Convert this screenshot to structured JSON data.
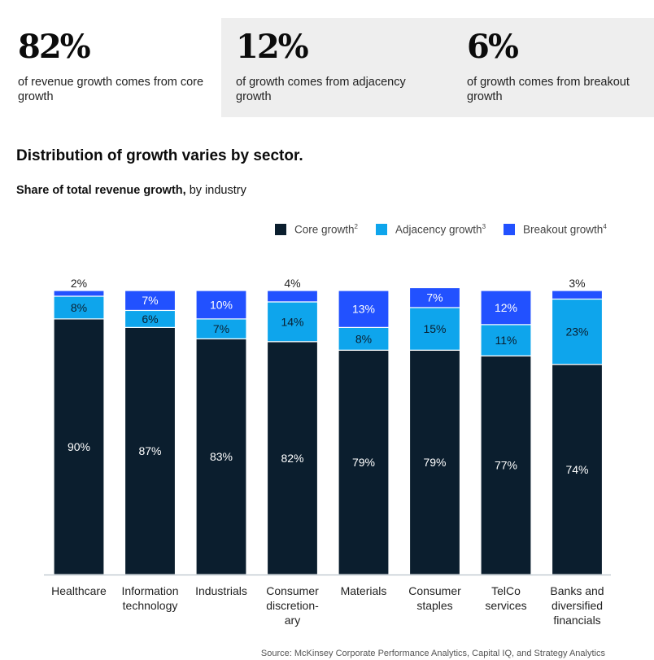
{
  "stats": [
    {
      "value": "82%",
      "description": "of revenue growth comes from core growth"
    },
    {
      "value": "12%",
      "description": "of growth comes from adjacency growth"
    },
    {
      "value": "6%",
      "description": "of growth comes from breakout growth"
    }
  ],
  "colors": {
    "core": "#0b1e2e",
    "adjacency": "#0ea5ec",
    "breakout": "#2251ff",
    "stat_highlight_bg": "#eeeeee"
  },
  "chart_data": {
    "type": "bar",
    "stacked": true,
    "title": "Distribution of growth varies by sector.",
    "subtitle_bold": "Share of total revenue growth,",
    "subtitle_rest": " by industry",
    "xlabel": "",
    "ylabel": "",
    "ylim": [
      0,
      100
    ],
    "grid": false,
    "legend_position": "top-right",
    "categories": [
      [
        "Healthcare"
      ],
      [
        "Information",
        "technology"
      ],
      [
        "Industrials"
      ],
      [
        "Consumer",
        "discretion-",
        "ary"
      ],
      [
        "Materials"
      ],
      [
        "Consumer",
        "staples"
      ],
      [
        "TelCo",
        "services"
      ],
      [
        "Banks and",
        "diversified",
        "financials"
      ]
    ],
    "series": [
      {
        "name": "Core growth",
        "footnote": "2",
        "key": "core",
        "values": [
          90,
          87,
          83,
          82,
          79,
          79,
          77,
          74
        ]
      },
      {
        "name": "Adjacency growth",
        "footnote": "3",
        "key": "adjacency",
        "values": [
          8,
          6,
          7,
          14,
          8,
          15,
          11,
          23
        ]
      },
      {
        "name": "Breakout growth",
        "footnote": "4",
        "key": "breakout",
        "values": [
          2,
          7,
          10,
          4,
          13,
          7,
          12,
          3
        ]
      }
    ],
    "labels_above_small_segments": true
  },
  "source": "Source: McKinsey Corporate Performance Analytics, Capital IQ, and Strategy Analytics"
}
